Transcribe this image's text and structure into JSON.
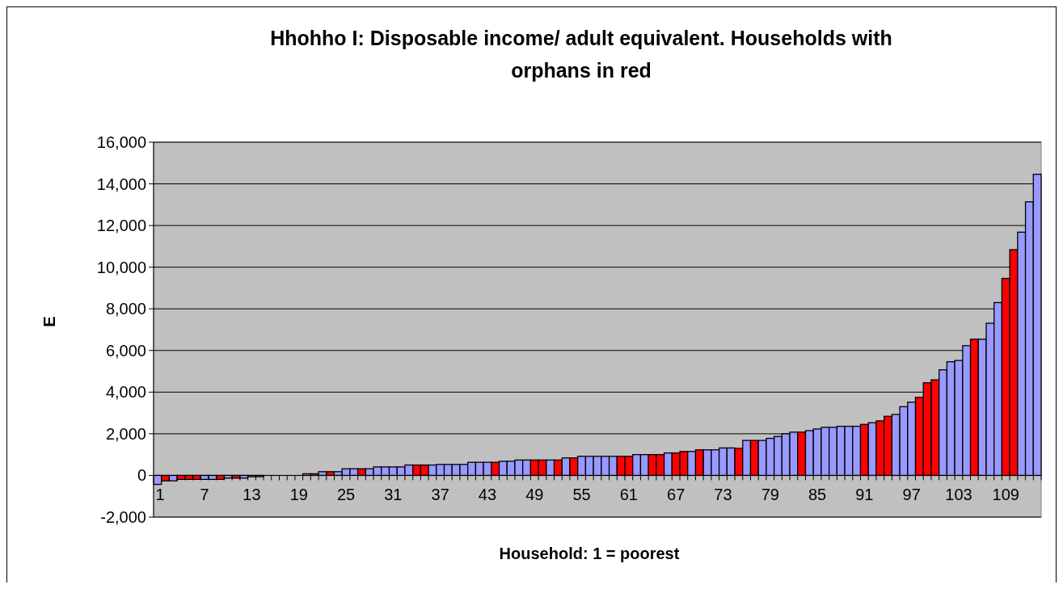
{
  "chart_data": {
    "type": "bar",
    "title": "Hhohho I: Disposable income/ adult equivalent. Households with orphans in red",
    "xlabel": "Household: 1 = poorest",
    "ylabel": "E",
    "categories": [
      "1",
      null,
      null,
      null,
      null,
      null,
      "7",
      null,
      null,
      null,
      null,
      null,
      "13",
      null,
      null,
      null,
      null,
      null,
      "19",
      null,
      null,
      null,
      null,
      null,
      "25",
      null,
      null,
      null,
      null,
      null,
      "31",
      null,
      null,
      null,
      null,
      null,
      "37",
      null,
      null,
      null,
      null,
      null,
      "43",
      null,
      null,
      null,
      null,
      null,
      "49",
      null,
      null,
      null,
      null,
      null,
      "55",
      null,
      null,
      null,
      null,
      null,
      "61",
      null,
      null,
      null,
      null,
      null,
      "67",
      null,
      null,
      null,
      null,
      null,
      "73",
      null,
      null,
      null,
      null,
      null,
      "79",
      null,
      null,
      null,
      null,
      null,
      "85",
      null,
      null,
      null,
      null,
      null,
      "91",
      null,
      null,
      null,
      null,
      null,
      "97",
      null,
      null,
      null,
      null,
      null,
      "103",
      null,
      null,
      null,
      null,
      null,
      "109",
      null,
      null,
      null,
      null
    ],
    "values": [
      -430,
      -260,
      -260,
      -190,
      -190,
      -190,
      -190,
      -190,
      -190,
      -130,
      -130,
      -130,
      -60,
      -60,
      0,
      0,
      0,
      0,
      0,
      80,
      80,
      180,
      180,
      180,
      320,
      320,
      320,
      320,
      410,
      410,
      410,
      410,
      500,
      500,
      500,
      500,
      530,
      530,
      530,
      530,
      630,
      630,
      630,
      630,
      680,
      680,
      740,
      740,
      740,
      740,
      740,
      740,
      840,
      840,
      920,
      920,
      920,
      920,
      920,
      920,
      920,
      1000,
      1000,
      1000,
      1000,
      1080,
      1080,
      1150,
      1150,
      1230,
      1230,
      1230,
      1320,
      1320,
      1300,
      1680,
      1680,
      1680,
      1780,
      1870,
      2000,
      2080,
      2080,
      2150,
      2230,
      2310,
      2310,
      2360,
      2360,
      2360,
      2450,
      2530,
      2620,
      2840,
      2930,
      3300,
      3520,
      3750,
      4450,
      4590,
      5070,
      5460,
      5520,
      6230,
      6540,
      6540,
      7310,
      8300,
      9460,
      10840,
      11680,
      13140,
      14460
    ],
    "colors": [
      "#9999ff",
      "#ff0000",
      "#9999ff",
      "#ff0000",
      "#ff0000",
      "#ff0000",
      "#9999ff",
      "#9999ff",
      "#ff0000",
      "#9999ff",
      "#ff0000",
      "#9999ff",
      "#9999ff",
      "#9999ff",
      "#9999ff",
      "#9999ff",
      "#9999ff",
      "#9999ff",
      "#9999ff",
      "#9999ff",
      "#ff0000",
      "#9999ff",
      "#ff0000",
      "#9999ff",
      "#9999ff",
      "#9999ff",
      "#ff0000",
      "#9999ff",
      "#9999ff",
      "#9999ff",
      "#9999ff",
      "#9999ff",
      "#9999ff",
      "#ff0000",
      "#ff0000",
      "#9999ff",
      "#9999ff",
      "#9999ff",
      "#9999ff",
      "#9999ff",
      "#9999ff",
      "#9999ff",
      "#9999ff",
      "#ff0000",
      "#9999ff",
      "#9999ff",
      "#9999ff",
      "#9999ff",
      "#ff0000",
      "#ff0000",
      "#9999ff",
      "#ff0000",
      "#9999ff",
      "#ff0000",
      "#9999ff",
      "#9999ff",
      "#9999ff",
      "#9999ff",
      "#9999ff",
      "#ff0000",
      "#ff0000",
      "#9999ff",
      "#9999ff",
      "#ff0000",
      "#ff0000",
      "#9999ff",
      "#ff0000",
      "#ff0000",
      "#9999ff",
      "#ff0000",
      "#9999ff",
      "#9999ff",
      "#9999ff",
      "#9999ff",
      "#ff0000",
      "#9999ff",
      "#ff0000",
      "#9999ff",
      "#9999ff",
      "#9999ff",
      "#9999ff",
      "#9999ff",
      "#ff0000",
      "#9999ff",
      "#9999ff",
      "#9999ff",
      "#9999ff",
      "#9999ff",
      "#9999ff",
      "#9999ff",
      "#ff0000",
      "#9999ff",
      "#ff0000",
      "#ff0000",
      "#9999ff",
      "#9999ff",
      "#9999ff",
      "#ff0000",
      "#ff0000",
      "#ff0000",
      "#9999ff",
      "#9999ff",
      "#9999ff",
      "#9999ff",
      "#ff0000",
      "#9999ff",
      "#9999ff",
      "#9999ff",
      "#ff0000",
      "#ff0000",
      "#9999ff",
      "#9999ff",
      "#9999ff"
    ],
    "ylim": [
      -2000,
      16000
    ],
    "yticks": [
      {
        "value": -2000,
        "label": "-2,000"
      },
      0,
      {
        "value": 2000,
        "label": "2,000"
      },
      {
        "value": 4000,
        "label": "4,000"
      },
      {
        "value": 6000,
        "label": "6,000"
      },
      {
        "value": 8000,
        "label": "8,000"
      },
      {
        "value": 10000,
        "label": "10,000"
      },
      {
        "value": 12000,
        "label": "12,000"
      },
      {
        "value": 14000,
        "label": "14,000"
      },
      {
        "value": 16000,
        "label": "16,000"
      }
    ],
    "grid": "y"
  }
}
